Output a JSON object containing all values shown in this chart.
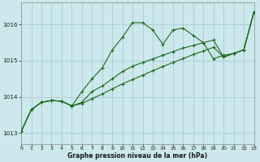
{
  "xlabel": "Graphe pression niveau de la mer (hPa)",
  "background_color": "#cce8ec",
  "grid_color": "#aaccd4",
  "line_color": "#1a6b1a",
  "xlim": [
    0,
    23
  ],
  "ylim": [
    1012.7,
    1016.6
  ],
  "yticks": [
    1013,
    1014,
    1015,
    1016
  ],
  "xticks": [
    0,
    1,
    2,
    3,
    4,
    5,
    6,
    7,
    8,
    9,
    10,
    11,
    12,
    13,
    14,
    15,
    16,
    17,
    18,
    19,
    20,
    21,
    22,
    23
  ],
  "series1_x": [
    0,
    1,
    2,
    3,
    4,
    5,
    6,
    7,
    8,
    9,
    10,
    11,
    12,
    13,
    14,
    15,
    16,
    17,
    18,
    19,
    20,
    21,
    22,
    23
  ],
  "series1_y": [
    1013.05,
    1013.65,
    1013.85,
    1013.9,
    1013.88,
    1013.75,
    1014.15,
    1014.5,
    1014.8,
    1015.3,
    1015.65,
    1016.05,
    1016.05,
    1015.85,
    1015.45,
    1015.85,
    1015.9,
    1015.7,
    1015.5,
    1015.05,
    1015.15,
    1015.2,
    1015.3,
    1016.35
  ],
  "series2_x": [
    0,
    1,
    2,
    3,
    4,
    5,
    6,
    7,
    8,
    9,
    10,
    11,
    12,
    13,
    14,
    15,
    16,
    17,
    18,
    19,
    20,
    21,
    22,
    23
  ],
  "series2_y": [
    1013.05,
    1013.65,
    1013.85,
    1013.9,
    1013.88,
    1013.75,
    1013.85,
    1014.15,
    1014.3,
    1014.5,
    1014.7,
    1014.85,
    1014.95,
    1015.05,
    1015.15,
    1015.25,
    1015.35,
    1015.42,
    1015.5,
    1015.57,
    1015.1,
    1015.2,
    1015.3,
    1016.35
  ],
  "series3_x": [
    0,
    1,
    2,
    3,
    4,
    5,
    6,
    7,
    8,
    9,
    10,
    11,
    12,
    13,
    14,
    15,
    16,
    17,
    18,
    19,
    20,
    21,
    22,
    23
  ],
  "series3_y": [
    1013.05,
    1013.65,
    1013.85,
    1013.9,
    1013.88,
    1013.75,
    1013.82,
    1013.95,
    1014.08,
    1014.22,
    1014.36,
    1014.48,
    1014.6,
    1014.72,
    1014.84,
    1014.95,
    1015.06,
    1015.17,
    1015.27,
    1015.37,
    1015.1,
    1015.2,
    1015.3,
    1016.35
  ]
}
